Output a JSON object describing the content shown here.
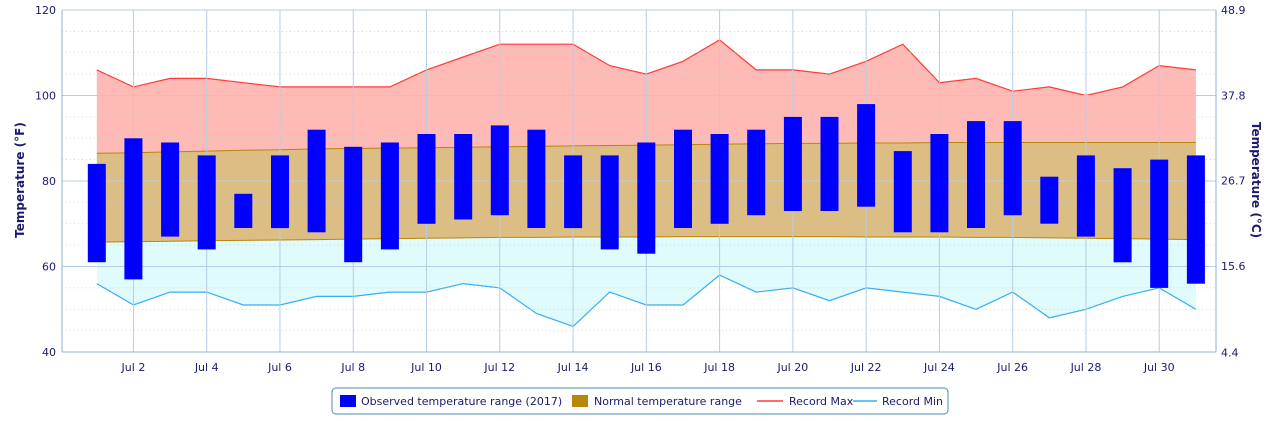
{
  "chart_data": {
    "type": "bar",
    "x": [
      1,
      2,
      3,
      4,
      5,
      6,
      7,
      8,
      9,
      10,
      11,
      12,
      13,
      14,
      15,
      16,
      17,
      18,
      19,
      20,
      21,
      22,
      23,
      24,
      25,
      26,
      27,
      28,
      29,
      30,
      31
    ],
    "x_tick_values": [
      2,
      4,
      6,
      8,
      10,
      12,
      14,
      16,
      18,
      20,
      22,
      24,
      26,
      28,
      30
    ],
    "x_tick_labels": [
      "Jul 2",
      "Jul 4",
      "Jul 6",
      "Jul 8",
      "Jul 10",
      "Jul 12",
      "Jul 14",
      "Jul 16",
      "Jul 18",
      "Jul 20",
      "Jul 22",
      "Jul 24",
      "Jul 26",
      "Jul 28",
      "Jul 30"
    ],
    "xlim": [
      0.05,
      31.55
    ],
    "ylim": [
      40,
      120
    ],
    "y_ticks": [
      40,
      60,
      80,
      100,
      120
    ],
    "y_tick_labels": [
      "40",
      "60",
      "80",
      "100",
      "120"
    ],
    "ylabel": "Temperature (°F)",
    "y2label": "Temperature (°C)",
    "y2_ticks": [
      4.4,
      15.6,
      26.7,
      37.8,
      48.9
    ],
    "y2_tick_labels": [
      "4.4",
      "15.6",
      "26.7",
      "37.8",
      "48.9"
    ],
    "grid": true,
    "legend_position": "bottom-center",
    "series": [
      {
        "name": "Observed temperature range (2017)",
        "kind": "range-bar",
        "color": "#0000ff",
        "low": [
          61,
          57,
          67,
          64,
          69,
          69,
          68,
          61,
          64,
          70,
          71,
          72,
          69,
          69,
          64,
          63,
          69,
          70,
          72,
          73,
          73,
          74,
          68,
          68,
          69,
          72,
          70,
          67,
          61,
          55,
          56
        ],
        "high": [
          84,
          90,
          89,
          86,
          77,
          86,
          92,
          88,
          89,
          91,
          91,
          93,
          92,
          86,
          86,
          89,
          92,
          91,
          92,
          95,
          95,
          98,
          87,
          91,
          94,
          94,
          81,
          86,
          83,
          85,
          86
        ]
      },
      {
        "name": "Normal temperature range",
        "kind": "band",
        "color": "#b8860b",
        "fill": "#dcbd84",
        "low": [
          65.7,
          65.8,
          65.9,
          66.0,
          66.1,
          66.2,
          66.3,
          66.4,
          66.5,
          66.6,
          66.7,
          66.8,
          66.8,
          66.9,
          66.9,
          66.9,
          67.0,
          67.0,
          67.0,
          67.0,
          67.0,
          66.9,
          66.9,
          66.9,
          66.8,
          66.8,
          66.7,
          66.6,
          66.5,
          66.4,
          66.3
        ],
        "high": [
          86.5,
          86.6,
          86.8,
          87.0,
          87.2,
          87.3,
          87.5,
          87.6,
          87.7,
          87.8,
          87.9,
          88.0,
          88.1,
          88.2,
          88.3,
          88.4,
          88.5,
          88.6,
          88.7,
          88.8,
          88.8,
          88.9,
          88.9,
          89.0,
          89.0,
          89.0,
          89.0,
          89.0,
          89.0,
          89.0,
          89.0
        ]
      },
      {
        "name": "Record Max",
        "kind": "line",
        "color": "#ff3b3b",
        "fill": "#ffbab5",
        "values": [
          106,
          102,
          104,
          104,
          103,
          102,
          102,
          102,
          102,
          106,
          109,
          112,
          112,
          112,
          107,
          105,
          108,
          113,
          106,
          106,
          105,
          108,
          112,
          103,
          104,
          101,
          102,
          100,
          102,
          107,
          106
        ]
      },
      {
        "name": "Record Min",
        "kind": "line",
        "color": "#39aef0",
        "fill": "#e0fbfb",
        "values": [
          56,
          51,
          54,
          54,
          51,
          51,
          53,
          53,
          54,
          54,
          56,
          55,
          49,
          46,
          54,
          51,
          51,
          58,
          54,
          55,
          52,
          55,
          54,
          53,
          50,
          54,
          48,
          50,
          53,
          55,
          50
        ]
      }
    ]
  }
}
